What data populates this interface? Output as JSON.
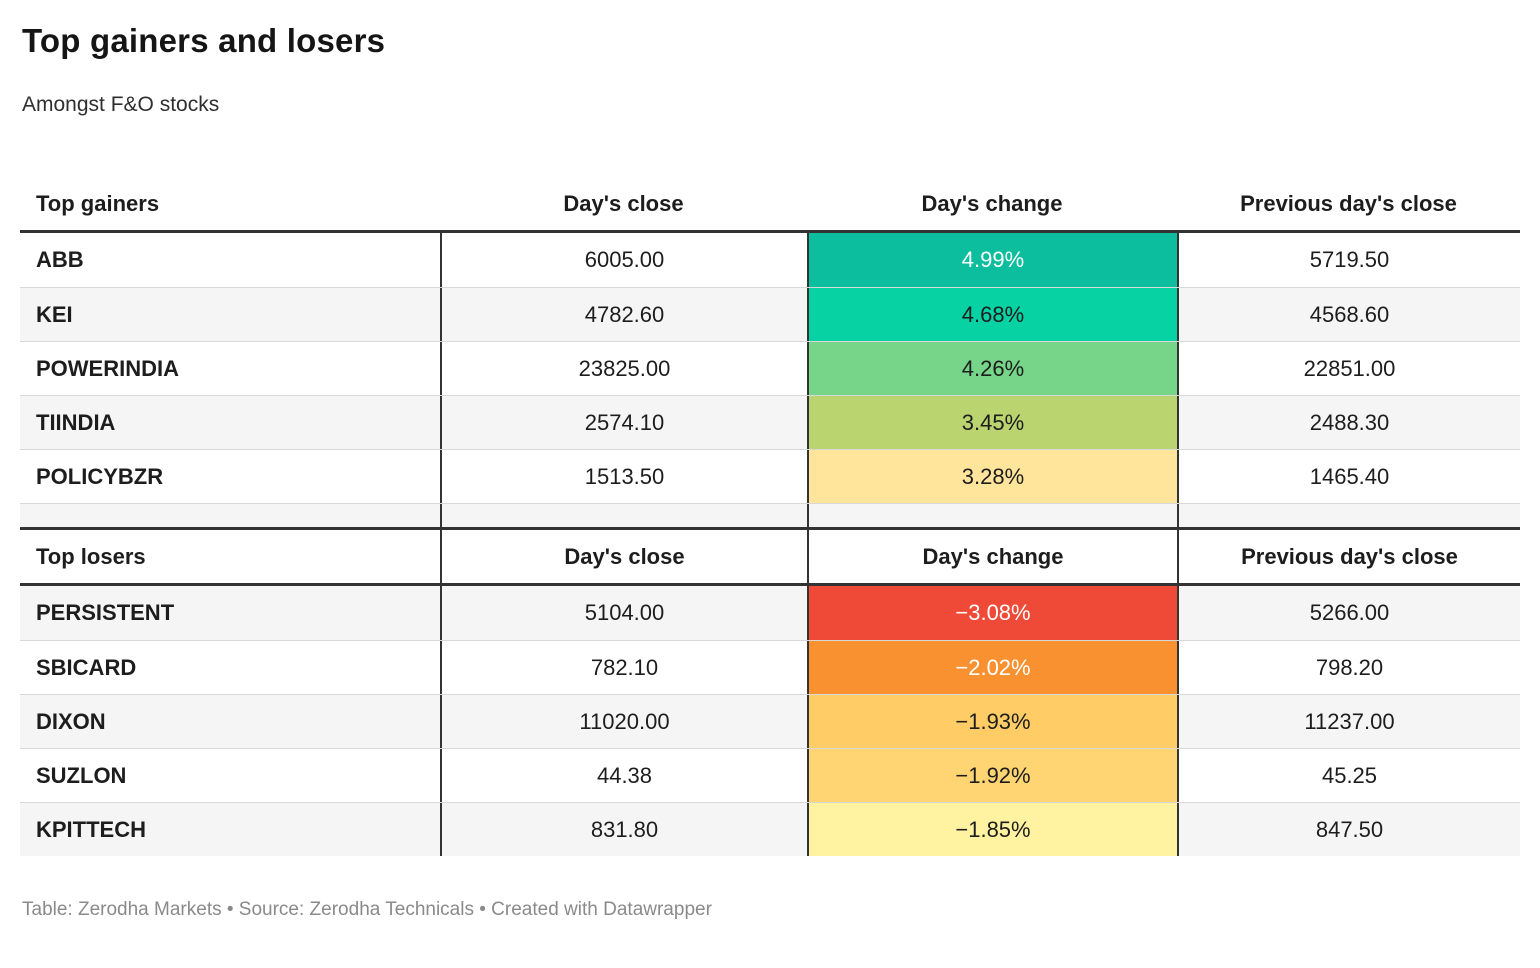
{
  "chart_data": {
    "type": "table",
    "title": "Top gainers and losers",
    "subtitle": "Amongst F&O stocks",
    "footer": "Table: Zerodha Markets • Source: Zerodha Technicals • Created with Datawrapper",
    "layout_hints": {
      "columns_align": [
        "left",
        "center",
        "center",
        "center"
      ],
      "change_column_is_heatmap": true,
      "alt_row_color": "#f5f5f5",
      "rule_color": "#333333"
    },
    "gainers": {
      "header": {
        "c0": "Top gainers",
        "c1": "Day's close",
        "c2": "Day's change",
        "c3": "Previous day's close"
      },
      "rows": [
        {
          "symbol": "ABB",
          "close": "6005.00",
          "change": "4.99%",
          "prev": "5719.50",
          "change_bg": "#0cbd9e",
          "change_fg": "#ffffff"
        },
        {
          "symbol": "KEI",
          "close": "4782.60",
          "change": "4.68%",
          "prev": "4568.60",
          "change_bg": "#06d2a3",
          "change_fg": "#1d1d1d"
        },
        {
          "symbol": "POWERINDIA",
          "close": "23825.00",
          "change": "4.26%",
          "prev": "22851.00",
          "change_bg": "#76d589",
          "change_fg": "#1d1d1d"
        },
        {
          "symbol": "TIINDIA",
          "close": "2574.10",
          "change": "3.45%",
          "prev": "2488.30",
          "change_bg": "#bad470",
          "change_fg": "#1d1d1d"
        },
        {
          "symbol": "POLICYBZR",
          "close": "1513.50",
          "change": "3.28%",
          "prev": "1465.40",
          "change_bg": "#ffe49b",
          "change_fg": "#1d1d1d"
        }
      ]
    },
    "losers": {
      "header": {
        "c0": "Top losers",
        "c1": "Day's close",
        "c2": "Day's change",
        "c3": "Previous day's close"
      },
      "rows": [
        {
          "symbol": "PERSISTENT",
          "close": "5104.00",
          "change": "−3.08%",
          "prev": "5266.00",
          "change_bg": "#ef4937",
          "change_fg": "#ffffff"
        },
        {
          "symbol": "SBICARD",
          "close": "782.10",
          "change": "−2.02%",
          "prev": "798.20",
          "change_bg": "#fa9130",
          "change_fg": "#ffffff"
        },
        {
          "symbol": "DIXON",
          "close": "11020.00",
          "change": "−1.93%",
          "prev": "11237.00",
          "change_bg": "#ffcc66",
          "change_fg": "#1d1d1d"
        },
        {
          "symbol": "SUZLON",
          "close": "44.38",
          "change": "−1.92%",
          "prev": "45.25",
          "change_bg": "#ffd573",
          "change_fg": "#1d1d1d"
        },
        {
          "symbol": "KPITTECH",
          "close": "831.80",
          "change": "−1.85%",
          "prev": "847.50",
          "change_bg": "#fff2a0",
          "change_fg": "#1d1d1d"
        }
      ]
    }
  }
}
